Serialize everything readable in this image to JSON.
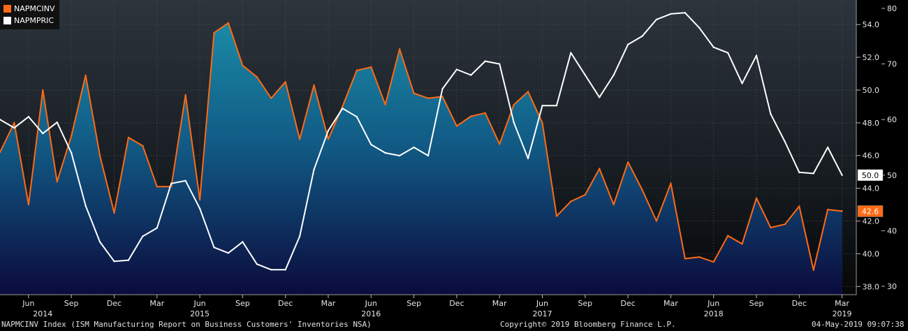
{
  "chart_data": {
    "type": "line",
    "legend_position": "top-left",
    "series": [
      {
        "name": "NAPMCINV",
        "axis": "left",
        "color": "#ff6a14",
        "fill": "gradient-blue",
        "last_value_label": "42.6",
        "points": [
          [
            "2014-04",
            46.2
          ],
          [
            "2014-05",
            48.0
          ],
          [
            "2014-06",
            43.0
          ],
          [
            "2014-07",
            50.0
          ],
          [
            "2014-08",
            44.4
          ],
          [
            "2014-09",
            47.2
          ],
          [
            "2014-10",
            50.9
          ],
          [
            "2014-11",
            46.0
          ],
          [
            "2014-12",
            42.5
          ],
          [
            "2015-01",
            47.1
          ],
          [
            "2015-02",
            46.6
          ],
          [
            "2015-03",
            44.1
          ],
          [
            "2015-04",
            44.1
          ],
          [
            "2015-05",
            49.7
          ],
          [
            "2015-06",
            43.3
          ],
          [
            "2015-07",
            53.5
          ],
          [
            "2015-08",
            54.1
          ],
          [
            "2015-09",
            51.5
          ],
          [
            "2015-10",
            50.8
          ],
          [
            "2015-11",
            49.5
          ],
          [
            "2015-12",
            50.5
          ],
          [
            "2016-01",
            47.0
          ],
          [
            "2016-02",
            50.3
          ],
          [
            "2016-03",
            47.0
          ],
          [
            "2016-04",
            49.0
          ],
          [
            "2016-05",
            51.2
          ],
          [
            "2016-06",
            51.4
          ],
          [
            "2016-07",
            49.1
          ],
          [
            "2016-08",
            52.5
          ],
          [
            "2016-09",
            49.8
          ],
          [
            "2016-10",
            49.5
          ],
          [
            "2016-11",
            49.6
          ],
          [
            "2016-12",
            47.8
          ],
          [
            "2017-01",
            48.4
          ],
          [
            "2017-02",
            48.6
          ],
          [
            "2017-03",
            46.7
          ],
          [
            "2017-04",
            49.1
          ],
          [
            "2017-05",
            49.9
          ],
          [
            "2017-06",
            48.0
          ],
          [
            "2017-07",
            42.3
          ],
          [
            "2017-08",
            43.2
          ],
          [
            "2017-09",
            43.6
          ],
          [
            "2017-10",
            45.2
          ],
          [
            "2017-11",
            43.0
          ],
          [
            "2017-12",
            45.6
          ],
          [
            "2018-01",
            43.9
          ],
          [
            "2018-02",
            42.0
          ],
          [
            "2018-03",
            44.3
          ],
          [
            "2018-04",
            39.7
          ],
          [
            "2018-05",
            39.8
          ],
          [
            "2018-06",
            39.5
          ],
          [
            "2018-07",
            41.1
          ],
          [
            "2018-08",
            40.6
          ],
          [
            "2018-09",
            43.4
          ],
          [
            "2018-10",
            41.6
          ],
          [
            "2018-11",
            41.8
          ],
          [
            "2018-12",
            42.9
          ],
          [
            "2019-01",
            39.0
          ],
          [
            "2019-02",
            42.7
          ],
          [
            "2019-03",
            42.6
          ]
        ]
      },
      {
        "name": "NAPMPRIC",
        "axis": "right",
        "color": "#ffffff",
        "last_value_label": "50.0",
        "points": [
          [
            "2014-04",
            60.0
          ],
          [
            "2014-05",
            58.5
          ],
          [
            "2014-06",
            60.5
          ],
          [
            "2014-07",
            57.5
          ],
          [
            "2014-08",
            59.5
          ],
          [
            "2014-09",
            54.0
          ],
          [
            "2014-10",
            44.5
          ],
          [
            "2014-11",
            38.0
          ],
          [
            "2014-12",
            34.5
          ],
          [
            "2015-01",
            34.7
          ],
          [
            "2015-02",
            39.0
          ],
          [
            "2015-03",
            40.5
          ],
          [
            "2015-04",
            48.5
          ],
          [
            "2015-05",
            49.0
          ],
          [
            "2015-06",
            44.0
          ],
          [
            "2015-07",
            37.0
          ],
          [
            "2015-08",
            36.0
          ],
          [
            "2015-09",
            38.0
          ],
          [
            "2015-10",
            34.0
          ],
          [
            "2015-11",
            33.0
          ],
          [
            "2015-12",
            33.0
          ],
          [
            "2016-01",
            39.0
          ],
          [
            "2016-02",
            51.0
          ],
          [
            "2016-03",
            58.0
          ],
          [
            "2016-04",
            62.0
          ],
          [
            "2016-05",
            60.5
          ],
          [
            "2016-06",
            55.5
          ],
          [
            "2016-07",
            54.0
          ],
          [
            "2016-08",
            53.5
          ],
          [
            "2016-09",
            55.0
          ],
          [
            "2016-10",
            53.5
          ],
          [
            "2016-11",
            65.5
          ],
          [
            "2016-12",
            69.0
          ],
          [
            "2017-01",
            68.0
          ],
          [
            "2017-02",
            70.5
          ],
          [
            "2017-03",
            70.0
          ],
          [
            "2017-04",
            59.5
          ],
          [
            "2017-05",
            53.0
          ],
          [
            "2017-06",
            62.5
          ],
          [
            "2017-07",
            62.5
          ],
          [
            "2017-08",
            72.0
          ],
          [
            "2017-09",
            68.0
          ],
          [
            "2017-10",
            64.0
          ],
          [
            "2017-11",
            68.0
          ],
          [
            "2017-12",
            73.5
          ],
          [
            "2018-01",
            75.0
          ],
          [
            "2018-02",
            78.0
          ],
          [
            "2018-03",
            79.0
          ],
          [
            "2018-04",
            79.2
          ],
          [
            "2018-05",
            76.5
          ],
          [
            "2018-06",
            73.0
          ],
          [
            "2018-07",
            72.0
          ],
          [
            "2018-08",
            66.5
          ],
          [
            "2018-09",
            71.5
          ],
          [
            "2018-10",
            61.0
          ],
          [
            "2018-11",
            56.0
          ],
          [
            "2018-12",
            50.5
          ],
          [
            "2019-01",
            50.3
          ],
          [
            "2019-02",
            55.0
          ],
          [
            "2019-03",
            50.0
          ]
        ]
      }
    ],
    "left_axis": {
      "range": [
        37.5,
        55.5
      ],
      "ticks": [
        38.0,
        40.0,
        42.0,
        44.0,
        46.0,
        48.0,
        50.0,
        52.0,
        54.0
      ],
      "tick_labels": [
        "38.0",
        "40.0",
        "42.0",
        "44.0",
        "46.0",
        "48.0",
        "50.0",
        "52.0",
        "54.0"
      ]
    },
    "right_axis": {
      "range": [
        28.5,
        81.5
      ],
      "ticks": [
        30,
        40,
        50,
        60,
        70,
        80
      ],
      "tick_labels": [
        "30",
        "40",
        "50",
        "60",
        "70",
        "80"
      ]
    },
    "x_axis": {
      "range": [
        "2014-04",
        "2019-04"
      ],
      "month_ticks": [
        {
          "date": "2014-06",
          "label": "Jun"
        },
        {
          "date": "2014-09",
          "label": "Sep"
        },
        {
          "date": "2014-12",
          "label": "Dec"
        },
        {
          "date": "2015-03",
          "label": "Mar"
        },
        {
          "date": "2015-06",
          "label": "Jun"
        },
        {
          "date": "2015-09",
          "label": "Sep"
        },
        {
          "date": "2015-12",
          "label": "Dec"
        },
        {
          "date": "2016-03",
          "label": "Mar"
        },
        {
          "date": "2016-06",
          "label": "Jun"
        },
        {
          "date": "2016-09",
          "label": "Sep"
        },
        {
          "date": "2016-12",
          "label": "Dec"
        },
        {
          "date": "2017-03",
          "label": "Mar"
        },
        {
          "date": "2017-06",
          "label": "Jun"
        },
        {
          "date": "2017-09",
          "label": "Sep"
        },
        {
          "date": "2017-12",
          "label": "Dec"
        },
        {
          "date": "2018-03",
          "label": "Mar"
        },
        {
          "date": "2018-06",
          "label": "Jun"
        },
        {
          "date": "2018-09",
          "label": "Sep"
        },
        {
          "date": "2018-12",
          "label": "Dec"
        },
        {
          "date": "2019-03",
          "label": "Mar"
        }
      ],
      "year_labels": [
        {
          "date": "2014-07",
          "label": "2014"
        },
        {
          "date": "2015-06",
          "label": "2015"
        },
        {
          "date": "2016-06",
          "label": "2016"
        },
        {
          "date": "2017-06",
          "label": "2017"
        },
        {
          "date": "2018-06",
          "label": "2018"
        },
        {
          "date": "2019-03",
          "label": "2019"
        }
      ]
    },
    "grid": true
  },
  "footer": {
    "description": "NAPMCINV Index (ISM Manufacturing Report on Business Customers' Inventories NSA)",
    "copyright": "Copyright© 2019 Bloomberg Finance L.P.",
    "timestamp": "04-May-2019 09:07:38"
  },
  "colors": {
    "inv": "#ff6a14",
    "pric": "#ffffff",
    "fill_top": "#1a8aa6",
    "fill_bottom": "#0b0b3d"
  }
}
